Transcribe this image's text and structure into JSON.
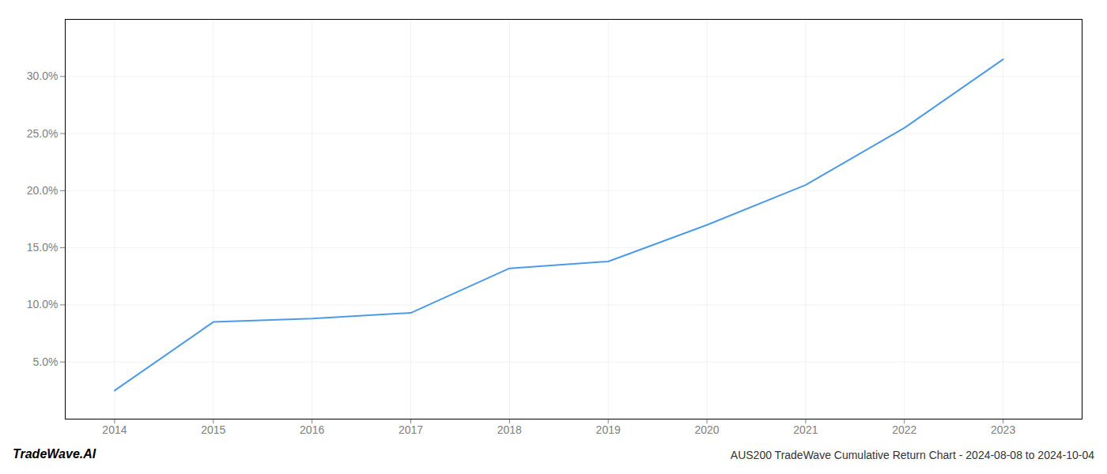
{
  "chart_data": {
    "type": "line",
    "title": "AUS200 TradeWave Cumulative Return Chart - 2024-08-08 to 2024-10-04",
    "annotations": [
      "TradeWave.AI"
    ],
    "x": [
      2014,
      2015,
      2016,
      2017,
      2018,
      2019,
      2020,
      2021,
      2022,
      2023
    ],
    "values": [
      2.5,
      8.5,
      8.8,
      9.3,
      13.2,
      13.8,
      17.0,
      20.5,
      25.5,
      31.5
    ],
    "color": "#4c9be8",
    "xlim": [
      2013.5,
      2023.8
    ],
    "xticks": [
      2014,
      2015,
      2016,
      2017,
      2018,
      2019,
      2020,
      2021,
      2022,
      2023
    ],
    "ylim": [
      0,
      35
    ],
    "yticks": [
      {
        "value": 5.0,
        "label": "5.0%"
      },
      {
        "value": 10.0,
        "label": "10.0%"
      },
      {
        "value": 15.0,
        "label": "15.0%"
      },
      {
        "value": 20.0,
        "label": "20.0%"
      },
      {
        "value": 25.0,
        "label": "25.0%"
      },
      {
        "value": 30.0,
        "label": "30.0%"
      }
    ],
    "grid": true
  }
}
